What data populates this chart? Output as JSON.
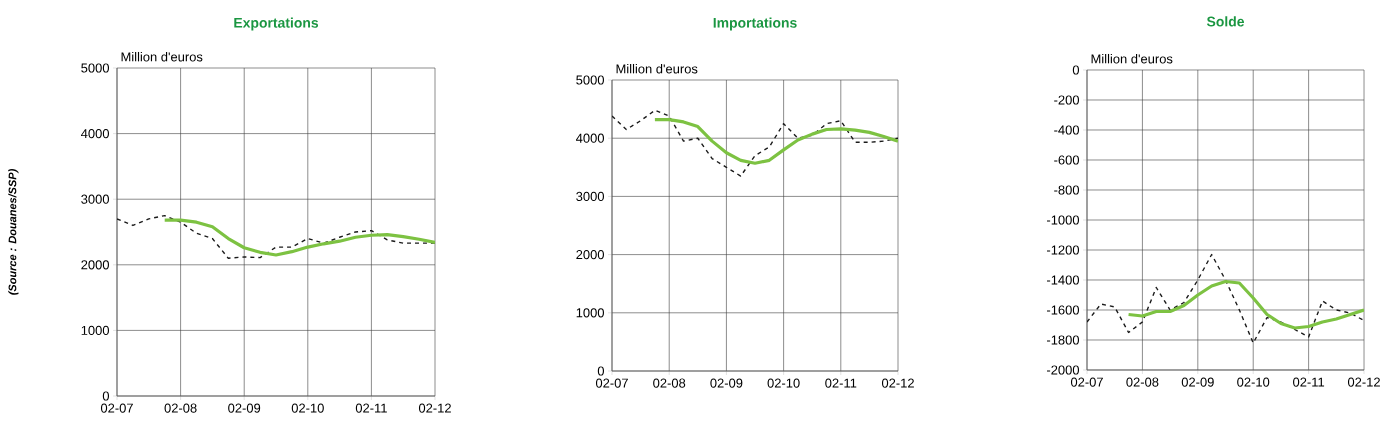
{
  "chart_data": [
    {
      "type": "line",
      "title": "Exportations",
      "ylabel": "Million d'euros",
      "grid": true,
      "xlim": [
        "2007-02",
        "2012-02"
      ],
      "ylim": [
        0,
        5000
      ],
      "xticks": [
        {
          "value": "2007-02",
          "label": "02-07"
        },
        {
          "value": "2008-02",
          "label": "02-08"
        },
        {
          "value": "2009-02",
          "label": "02-09"
        },
        {
          "value": "2010-02",
          "label": "02-10"
        },
        {
          "value": "2011-02",
          "label": "02-11"
        },
        {
          "value": "2012-02",
          "label": "02-12"
        }
      ],
      "yticks": [
        0,
        1000,
        2000,
        3000,
        4000,
        5000
      ],
      "annotations": [
        "(Source : Douanes/SSP)"
      ],
      "series": [
        {
          "color": "#1a1a1a",
          "line_style": "dashed",
          "x": [
            "2007-02",
            "2007-05",
            "2007-08",
            "2007-11",
            "2008-02",
            "2008-05",
            "2008-08",
            "2008-11",
            "2009-02",
            "2009-05",
            "2009-08",
            "2009-11",
            "2010-02",
            "2010-05",
            "2010-08",
            "2010-11",
            "2011-02",
            "2011-05",
            "2011-08",
            "2011-11",
            "2012-02"
          ],
          "values": [
            2700,
            2600,
            2700,
            2750,
            2650,
            2480,
            2400,
            2100,
            2120,
            2110,
            2270,
            2270,
            2400,
            2330,
            2420,
            2500,
            2520,
            2380,
            2330,
            2330,
            2330
          ]
        },
        {
          "color": "#7dc242",
          "line_style": "solid",
          "x": [
            "2007-11",
            "2008-02",
            "2008-05",
            "2008-08",
            "2008-11",
            "2009-02",
            "2009-05",
            "2009-08",
            "2009-11",
            "2010-02",
            "2010-05",
            "2010-08",
            "2010-11",
            "2011-02",
            "2011-05",
            "2011-08",
            "2011-11",
            "2012-02"
          ],
          "values": [
            2680,
            2680,
            2650,
            2580,
            2400,
            2260,
            2190,
            2150,
            2200,
            2270,
            2320,
            2360,
            2420,
            2450,
            2460,
            2430,
            2390,
            2340
          ]
        }
      ]
    },
    {
      "type": "line",
      "title": "Importations",
      "ylabel": "Million d'euros",
      "grid": true,
      "xlim": [
        "2007-02",
        "2012-02"
      ],
      "ylim": [
        0,
        5000
      ],
      "xticks": [
        {
          "value": "2007-02",
          "label": "02-07"
        },
        {
          "value": "2008-02",
          "label": "02-08"
        },
        {
          "value": "2009-02",
          "label": "02-09"
        },
        {
          "value": "2010-02",
          "label": "02-10"
        },
        {
          "value": "2011-02",
          "label": "02-11"
        },
        {
          "value": "2012-02",
          "label": "02-12"
        }
      ],
      "yticks": [
        0,
        1000,
        2000,
        3000,
        4000,
        5000
      ],
      "series": [
        {
          "color": "#1a1a1a",
          "line_style": "dashed",
          "x": [
            "2007-02",
            "2007-05",
            "2007-08",
            "2007-11",
            "2008-02",
            "2008-05",
            "2008-08",
            "2008-11",
            "2009-02",
            "2009-05",
            "2009-08",
            "2009-11",
            "2010-02",
            "2010-05",
            "2010-08",
            "2010-11",
            "2011-02",
            "2011-05",
            "2011-08",
            "2011-11",
            "2012-02"
          ],
          "values": [
            4380,
            4150,
            4300,
            4480,
            4380,
            3950,
            4000,
            3650,
            3500,
            3350,
            3700,
            3850,
            4250,
            4000,
            4050,
            4250,
            4300,
            3930,
            3930,
            3950,
            4000
          ]
        },
        {
          "color": "#7dc242",
          "line_style": "solid",
          "x": [
            "2007-11",
            "2008-02",
            "2008-05",
            "2008-08",
            "2008-11",
            "2009-02",
            "2009-05",
            "2009-08",
            "2009-11",
            "2010-02",
            "2010-05",
            "2010-08",
            "2010-11",
            "2011-02",
            "2011-05",
            "2011-08",
            "2011-11",
            "2012-02"
          ],
          "values": [
            4320,
            4320,
            4280,
            4200,
            3950,
            3750,
            3620,
            3570,
            3620,
            3800,
            3970,
            4070,
            4150,
            4160,
            4140,
            4100,
            4030,
            3950
          ]
        }
      ]
    },
    {
      "type": "line",
      "title": "Solde",
      "ylabel": "Million d'euros",
      "grid": true,
      "xlim": [
        "2007-02",
        "2012-02"
      ],
      "ylim": [
        -2000,
        0
      ],
      "xticks": [
        {
          "value": "2007-02",
          "label": "02-07"
        },
        {
          "value": "2008-02",
          "label": "02-08"
        },
        {
          "value": "2009-02",
          "label": "02-09"
        },
        {
          "value": "2010-02",
          "label": "02-10"
        },
        {
          "value": "2011-02",
          "label": "02-11"
        },
        {
          "value": "2012-02",
          "label": "02-12"
        }
      ],
      "yticks": [
        -2000,
        -1800,
        -1600,
        -1400,
        -1200,
        -1000,
        -800,
        -600,
        -400,
        -200,
        0
      ],
      "series": [
        {
          "color": "#1a1a1a",
          "line_style": "dashed",
          "x": [
            "2007-02",
            "2007-05",
            "2007-08",
            "2007-11",
            "2008-02",
            "2008-05",
            "2008-08",
            "2008-11",
            "2009-02",
            "2009-05",
            "2009-08",
            "2009-11",
            "2010-02",
            "2010-05",
            "2010-08",
            "2010-11",
            "2011-02",
            "2011-05",
            "2011-08",
            "2011-11",
            "2012-02"
          ],
          "values": [
            -1680,
            -1560,
            -1580,
            -1750,
            -1680,
            -1450,
            -1600,
            -1550,
            -1400,
            -1230,
            -1400,
            -1600,
            -1820,
            -1650,
            -1680,
            -1730,
            -1780,
            -1540,
            -1600,
            -1620,
            -1670
          ]
        },
        {
          "color": "#7dc242",
          "line_style": "solid",
          "x": [
            "2007-11",
            "2008-02",
            "2008-05",
            "2008-08",
            "2008-11",
            "2009-02",
            "2009-05",
            "2009-08",
            "2009-11",
            "2010-02",
            "2010-05",
            "2010-08",
            "2010-11",
            "2011-02",
            "2011-05",
            "2011-08",
            "2011-11",
            "2012-02"
          ],
          "values": [
            -1630,
            -1640,
            -1610,
            -1610,
            -1570,
            -1500,
            -1440,
            -1410,
            -1420,
            -1520,
            -1630,
            -1690,
            -1720,
            -1710,
            -1680,
            -1660,
            -1630,
            -1600
          ]
        }
      ]
    }
  ]
}
